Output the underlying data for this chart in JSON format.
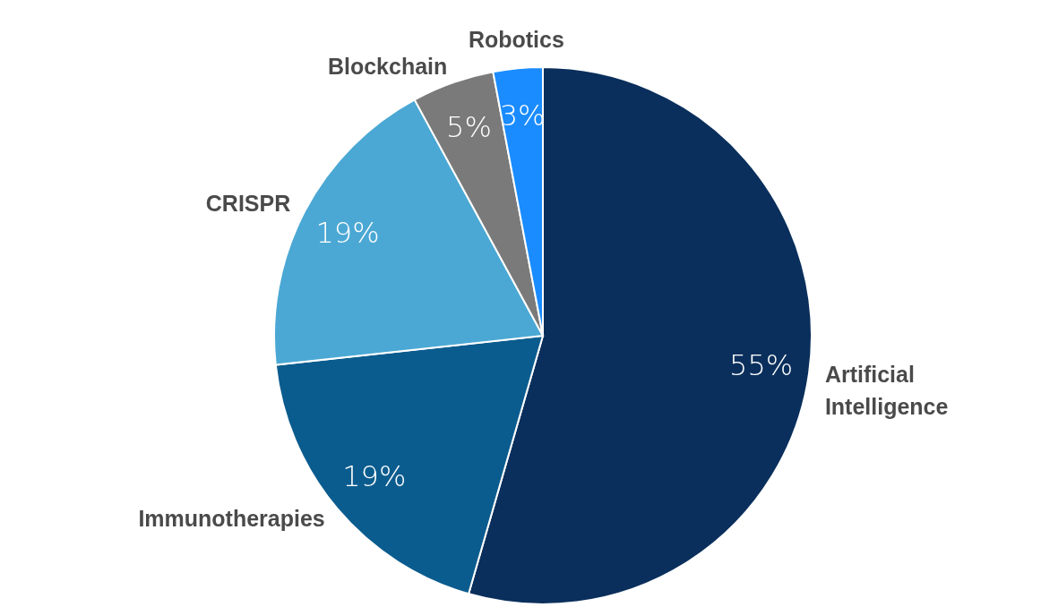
{
  "chart_data": {
    "type": "pie",
    "categories": [
      "Artificial Intelligence",
      "Immunotherapies",
      "CRISPR",
      "Blockchain",
      "Robotics"
    ],
    "values": [
      55,
      19,
      19,
      5,
      3
    ],
    "colors": [
      "#0a2f5c",
      "#0b5c8e",
      "#4ba8d4",
      "#7a7a7a",
      "#1a8cff"
    ],
    "value_labels": [
      "55%",
      "19%",
      "19%",
      "5%",
      "3%"
    ]
  }
}
